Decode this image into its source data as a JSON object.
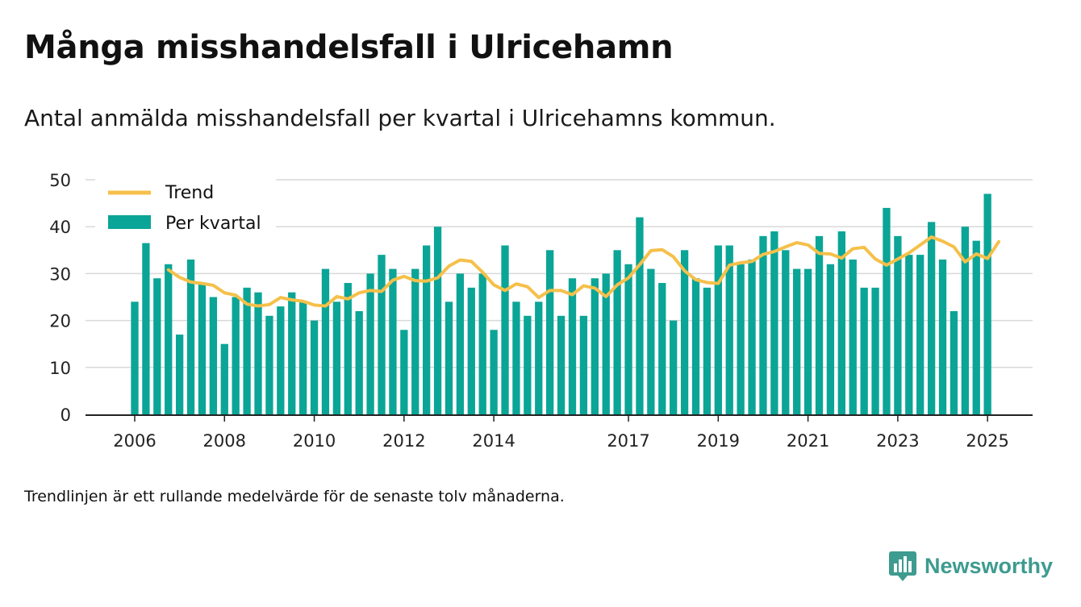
{
  "header": {
    "title": "Många misshandelsfall i Ulricehamn",
    "subtitle": "Antal anmälda misshandelsfall per kvartal i Ulricehamns kommun."
  },
  "footnote": "Trendlinjen är ett rullande medelvärde för de senaste tolv månaderna.",
  "brand": {
    "name": "Newsworthy",
    "icon": "newsworthy-chart-bubble-icon",
    "color": "#3d9b8f"
  },
  "legend": {
    "trend_label": "Trend",
    "bars_label": "Per kvartal"
  },
  "chart_data": {
    "type": "bar",
    "title": "Många misshandelsfall i Ulricehamn",
    "xlabel": "",
    "ylabel": "",
    "ylim": [
      0,
      50
    ],
    "yticks": [
      0,
      10,
      20,
      30,
      40,
      50
    ],
    "xtick_labels": [
      "2006",
      "2008",
      "2010",
      "2012",
      "2014",
      "2017",
      "2019",
      "2021",
      "2023",
      "2025"
    ],
    "xtick_bar_index": [
      0,
      8,
      16,
      24,
      32,
      44,
      52,
      60,
      68,
      76
    ],
    "grid": true,
    "legend_position": "top-left",
    "colors": {
      "bars": "#0aa596",
      "trend": "#f5c04a",
      "grid": "#d9d9d9",
      "axis": "#222222"
    },
    "series": [
      {
        "name": "Per kvartal",
        "type": "bar",
        "values": [
          24,
          36.5,
          29,
          32,
          17,
          33,
          28,
          25,
          15,
          25,
          27,
          26,
          21,
          23,
          26,
          24,
          20,
          31,
          24,
          28,
          22,
          30,
          34,
          31,
          18,
          31,
          36,
          40,
          24,
          30,
          27,
          30,
          18,
          36,
          24,
          21,
          24,
          35,
          21,
          29,
          21,
          29,
          30,
          35,
          32,
          42,
          31,
          28,
          20,
          35,
          29,
          27,
          36,
          36,
          32,
          33,
          38,
          39,
          35,
          31,
          31,
          38,
          32,
          39,
          33,
          27,
          27,
          44,
          38,
          34,
          34,
          41,
          33,
          22,
          40,
          37,
          47
        ]
      },
      {
        "name": "Trend",
        "type": "line",
        "start_index": 3,
        "values": [
          30.8,
          29.2,
          28.2,
          27.9,
          27.5,
          25.9,
          25.4,
          23.5,
          23.1,
          23.4,
          24.9,
          24.4,
          24.1,
          23.3,
          23.1,
          25.1,
          24.6,
          25.9,
          26.4,
          26.2,
          28.6,
          29.4,
          28.5,
          28.4,
          29.1,
          31.6,
          32.9,
          32.6,
          30.3,
          27.6,
          26.4,
          27.8,
          27.2,
          24.9,
          26.4,
          26.4,
          25.5,
          27.4,
          26.9,
          25.1,
          27.6,
          29.1,
          31.9,
          34.9,
          35.1,
          33.6,
          30.6,
          28.7,
          28.1,
          27.9,
          31.8,
          32.3,
          32.6,
          34.1,
          34.7,
          35.7,
          36.6,
          36.1,
          34.3,
          34.2,
          33.3,
          35.3,
          35.6,
          33.1,
          31.8,
          33.1,
          34.4,
          36.1,
          37.8,
          36.9,
          35.7,
          32.5,
          34.2,
          33.2,
          36.8
        ]
      }
    ]
  }
}
